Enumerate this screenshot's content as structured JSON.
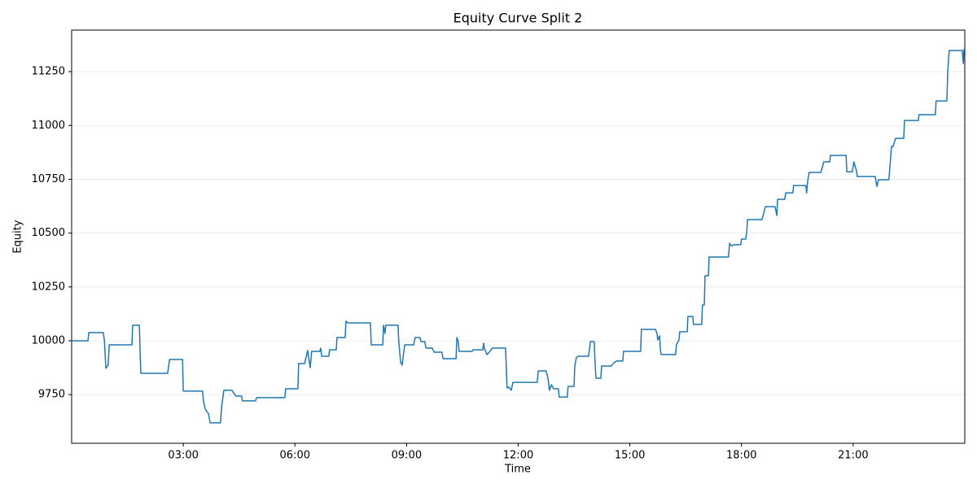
{
  "chart_data": {
    "type": "line",
    "title": "Equity Curve Split 2",
    "x_label": "Time",
    "y_label": "Equity",
    "xlim": [
      0,
      24
    ],
    "xticks": [
      {
        "value": 3,
        "label": "03:00"
      },
      {
        "value": 6,
        "label": "06:00"
      },
      {
        "value": 9,
        "label": "09:00"
      },
      {
        "value": 12,
        "label": "12:00"
      },
      {
        "value": 15,
        "label": "15:00"
      },
      {
        "value": 18,
        "label": "18:00"
      },
      {
        "value": 21,
        "label": "21:00"
      }
    ],
    "ylim": [
      9524,
      11443
    ],
    "yticks": [
      9750,
      10000,
      10250,
      10500,
      10750,
      11000,
      11250
    ],
    "grid": true,
    "x": [
      0,
      0.44,
      0.46,
      0.85,
      0.88,
      0.92,
      0.98,
      1.01,
      1.62,
      1.64,
      1.82,
      1.84,
      1.86,
      2.58,
      2.63,
      2.98,
      3.0,
      3.52,
      3.54,
      3.59,
      3.68,
      3.72,
      4.0,
      4.03,
      4.09,
      4.31,
      4.35,
      4.42,
      4.57,
      4.59,
      4.94,
      4.97,
      5.73,
      5.75,
      6.08,
      6.1,
      6.26,
      6.34,
      6.41,
      6.45,
      6.67,
      6.69,
      6.72,
      6.91,
      6.93,
      7.11,
      7.13,
      7.35,
      7.37,
      7.42,
      8.03,
      8.05,
      8.36,
      8.38,
      8.42,
      8.44,
      8.77,
      8.79,
      8.84,
      8.88,
      8.95,
      9.19,
      9.23,
      9.36,
      9.39,
      9.49,
      9.52,
      9.69,
      9.74,
      9.95,
      9.98,
      10.33,
      10.35,
      10.39,
      10.41,
      10.76,
      10.79,
      11.05,
      11.07,
      11.09,
      11.16,
      11.24,
      11.31,
      11.66,
      11.7,
      11.75,
      11.81,
      11.86,
      12.51,
      12.54,
      12.75,
      12.8,
      12.84,
      12.89,
      12.95,
      13.08,
      13.1,
      13.32,
      13.34,
      13.5,
      13.52,
      13.56,
      13.61,
      13.89,
      13.94,
      14.04,
      14.07,
      14.09,
      14.22,
      14.24,
      14.5,
      14.55,
      14.64,
      14.81,
      14.83,
      15.29,
      15.31,
      15.69,
      15.73,
      15.75,
      15.8,
      15.82,
      15.84,
      16.23,
      16.25,
      16.32,
      16.34,
      16.54,
      16.56,
      16.69,
      16.71,
      16.93,
      16.95,
      17.0,
      17.02,
      17.11,
      17.13,
      17.65,
      17.68,
      17.72,
      17.76,
      17.79,
      17.98,
      18.0,
      18.11,
      18.14,
      18.16,
      18.55,
      18.6,
      18.64,
      18.9,
      18.95,
      18.97,
      19.16,
      19.19,
      19.38,
      19.4,
      19.73,
      19.75,
      19.78,
      19.82,
      20.13,
      20.17,
      20.21,
      20.37,
      20.39,
      20.81,
      20.83,
      20.98,
      21.02,
      21.09,
      21.11,
      21.59,
      21.64,
      21.68,
      21.96,
      21.99,
      22.03,
      22.07,
      22.14,
      22.36,
      22.38,
      22.75,
      22.77,
      23.21,
      23.23,
      23.52,
      23.54,
      23.58,
      23.93,
      23.96,
      23.98
    ],
    "series": [
      {
        "name": "Equity",
        "color": "#1f77b4",
        "values": [
          10000,
          10000,
          10038,
          10038,
          10000,
          9872,
          9887,
          9981,
          9981,
          10072,
          10072,
          9940,
          9849,
          9849,
          9913,
          9913,
          9766,
          9766,
          9721,
          9683,
          9660,
          9619,
          9619,
          9694,
          9770,
          9770,
          9758,
          9743,
          9743,
          9721,
          9721,
          9736,
          9736,
          9777,
          9777,
          9894,
          9894,
          9955,
          9875,
          9951,
          9951,
          9966,
          9928,
          9928,
          9958,
          9958,
          10015,
          10015,
          10091,
          10083,
          10083,
          9981,
          9981,
          10072,
          10034,
          10072,
          10072,
          9996,
          9902,
          9887,
          9981,
          9981,
          10015,
          10015,
          9996,
          9996,
          9966,
          9966,
          9947,
          9947,
          9917,
          9917,
          10015,
          9996,
          9951,
          9951,
          9958,
          9958,
          9989,
          9966,
          9936,
          9951,
          9966,
          9966,
          9781,
          9785,
          9770,
          9807,
          9807,
          9860,
          9860,
          9826,
          9770,
          9796,
          9777,
          9777,
          9739,
          9739,
          9788,
          9788,
          9883,
          9921,
          9928,
          9928,
          9996,
          9996,
          9883,
          9826,
          9826,
          9883,
          9883,
          9894,
          9906,
          9906,
          9951,
          9951,
          10053,
          10053,
          10034,
          10004,
          10023,
          9958,
          9936,
          9936,
          9981,
          10004,
          10042,
          10042,
          10113,
          10113,
          10076,
          10076,
          10166,
          10166,
          10302,
          10302,
          10389,
          10389,
          10453,
          10442,
          10442,
          10446,
          10446,
          10472,
          10472,
          10502,
          10563,
          10563,
          10593,
          10623,
          10623,
          10582,
          10657,
          10657,
          10687,
          10687,
          10721,
          10721,
          10687,
          10744,
          10782,
          10782,
          10804,
          10831,
          10831,
          10861,
          10861,
          10785,
          10785,
          10831,
          10789,
          10763,
          10763,
          10717,
          10748,
          10748,
          10812,
          10902,
          10902,
          10940,
          10940,
          11023,
          11023,
          11050,
          11050,
          11114,
          11114,
          11246,
          11348,
          11348,
          11288,
          11356
        ]
      }
    ]
  }
}
